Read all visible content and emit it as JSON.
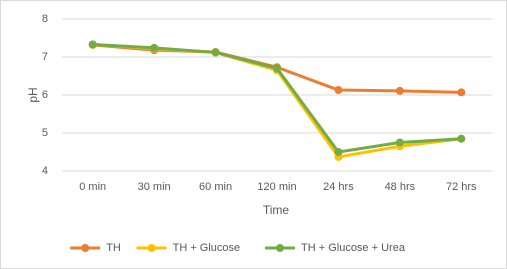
{
  "chart_data": {
    "type": "line",
    "categories": [
      "0 min",
      "30 min",
      "60 min",
      "120 min",
      "24 hrs",
      "48 hrs",
      "72 hrs"
    ],
    "series": [
      {
        "name": "TH",
        "color": "#ed7d31",
        "values": [
          7.32,
          7.18,
          7.13,
          6.73,
          6.13,
          6.11,
          6.07
        ]
      },
      {
        "name": "TH + Glucose",
        "color": "#ffc000",
        "values": [
          7.33,
          7.22,
          7.12,
          6.65,
          4.37,
          4.65,
          4.85
        ]
      },
      {
        "name": "TH + Glucose + Urea",
        "color": "#70ad47",
        "values": [
          7.33,
          7.24,
          7.12,
          6.7,
          4.5,
          4.75,
          4.85
        ]
      }
    ],
    "ylim": [
      4,
      8
    ],
    "yticks": [
      4,
      5,
      6,
      7,
      8
    ],
    "grid": true,
    "x_label": "Time",
    "y_label": "pH",
    "legend": "bottom"
  }
}
